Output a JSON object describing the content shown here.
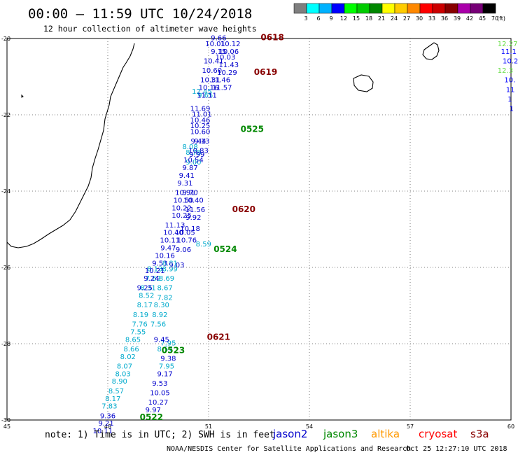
{
  "header": {
    "title": "00:00 – 11:59 UTC 10/24/2018",
    "subtitle": "12 hour collection of altimeter wave heights"
  },
  "legend": {
    "unit": "(ft)",
    "labels": [
      "3",
      "6",
      "9",
      "12",
      "15",
      "18",
      "21",
      "24",
      "27",
      "30",
      "33",
      "36",
      "39",
      "42",
      "45",
      "70"
    ],
    "colors": [
      "#7f7f7f",
      "#00ffff",
      "#00b2ff",
      "#0000ff",
      "#00ff00",
      "#00cc00",
      "#008800",
      "#ffff00",
      "#ffcc00",
      "#ff8800",
      "#ff0000",
      "#cc0000",
      "#880000",
      "#aa00aa",
      "#770077",
      "#000000"
    ]
  },
  "map": {
    "lon_min": 45,
    "lon_max": 60,
    "lat_min": -30,
    "lat_max": -20,
    "x_ticks": [
      "45",
      "48",
      "51",
      "54",
      "57",
      "60"
    ],
    "y_ticks": [
      "-20",
      "-22",
      "-24",
      "-26",
      "-28",
      "-30"
    ]
  },
  "colors": {
    "j2": "#0000cc",
    "j2b": "#0000ff",
    "j3": "#008800",
    "al": "#ff9900",
    "s3": "#880000",
    "lt": "#00aacc",
    "gr": "#66dd44"
  },
  "tracks": [
    {
      "c": "lt",
      "pts": [
        [
          49.85,
          -25.95,
          "8.81"
        ],
        [
          49.4,
          -26.1,
          "8.13"
        ],
        [
          49.85,
          -26.1,
          "8.99"
        ],
        [
          49.35,
          -26.35,
          "7.62"
        ],
        [
          49.75,
          -26.35,
          "8.69"
        ],
        [
          49.2,
          -26.6,
          "8.31"
        ],
        [
          49.7,
          -26.6,
          "8.67"
        ],
        [
          49.15,
          -26.8,
          "8.52"
        ],
        [
          49.7,
          -26.85,
          "7.82"
        ],
        [
          49.1,
          -27.05,
          "8.17"
        ],
        [
          49.6,
          -27.05,
          "8.30"
        ],
        [
          48.98,
          -27.3,
          "8.19"
        ],
        [
          49.55,
          -27.3,
          "8.92"
        ],
        [
          48.95,
          -27.55,
          "7.76"
        ],
        [
          49.5,
          -27.55,
          "7.56"
        ],
        [
          48.9,
          -27.75,
          "7.55"
        ],
        [
          48.75,
          -27.95,
          "8.65"
        ],
        [
          48.7,
          -28.2,
          "8.66"
        ],
        [
          48.6,
          -28.4,
          "8.02"
        ],
        [
          48.5,
          -28.65,
          "8.07"
        ],
        [
          48.45,
          -28.85,
          "8.03"
        ],
        [
          48.35,
          -29.05,
          "8.90"
        ],
        [
          48.25,
          -29.3,
          "8.57"
        ],
        [
          48.15,
          -29.5,
          "8.17"
        ],
        [
          48.05,
          -29.7,
          "7.83"
        ],
        [
          50.85,
          -25.45,
          "8.59"
        ],
        [
          50.45,
          -22.9,
          "8.08"
        ],
        [
          50.55,
          -23.05,
          "8.78"
        ],
        [
          50.55,
          -23.3,
          "9.00"
        ],
        [
          50.8,
          -21.45,
          "12.45"
        ],
        [
          50.9,
          -21.55,
          "9.65"
        ],
        [
          49.7,
          -28.2,
          "8.57"
        ],
        [
          49.75,
          -28.65,
          "7.95"
        ],
        [
          49.8,
          -28.05,
          "7.95"
        ]
      ]
    },
    {
      "c": "j2",
      "pts": [
        [
          51.3,
          -20.05,
          "9.66"
        ],
        [
          51.2,
          -20.2,
          "10.01"
        ],
        [
          51.65,
          -20.2,
          "10.12"
        ],
        [
          51.3,
          -20.4,
          "9.15"
        ],
        [
          51.6,
          -20.4,
          "10.06"
        ],
        [
          51.5,
          -20.55,
          "10.03"
        ],
        [
          51.15,
          -20.65,
          "10.41"
        ],
        [
          51.6,
          -20.75,
          "11.43"
        ],
        [
          51.1,
          -20.9,
          "10.60"
        ],
        [
          51.55,
          -20.95,
          "10.29"
        ],
        [
          51.05,
          -21.15,
          "10.31"
        ],
        [
          51.35,
          -21.15,
          "11.46"
        ],
        [
          51.0,
          -21.35,
          "10.16"
        ],
        [
          51.4,
          -21.35,
          "11.57"
        ],
        [
          50.95,
          -21.55,
          "11.11"
        ],
        [
          50.75,
          -21.9,
          "11.69"
        ],
        [
          50.8,
          -22.05,
          "11.01"
        ],
        [
          50.75,
          -22.2,
          "10.46"
        ],
        [
          50.75,
          -22.35,
          "10.25"
        ],
        [
          50.75,
          -22.5,
          "10.60"
        ],
        [
          50.7,
          -22.75,
          "9.44"
        ],
        [
          50.8,
          -22.75,
          "9.13"
        ],
        [
          50.7,
          -23.0,
          "10.83"
        ],
        [
          50.65,
          -23.1,
          "9.99"
        ],
        [
          50.55,
          -23.25,
          "10.54"
        ],
        [
          50.45,
          -23.45,
          "9.87"
        ],
        [
          50.35,
          -23.65,
          "9.41"
        ],
        [
          50.3,
          -23.85,
          "9.31"
        ],
        [
          50.3,
          -24.1,
          "10.91"
        ],
        [
          50.45,
          -24.1,
          "9.70"
        ],
        [
          50.25,
          -24.3,
          "10.50"
        ],
        [
          50.55,
          -24.3,
          "10.40"
        ],
        [
          50.2,
          -24.5,
          "10.22"
        ],
        [
          50.6,
          -24.55,
          "11.56"
        ],
        [
          50.2,
          -24.7,
          "10.25"
        ],
        [
          50.55,
          -24.75,
          "9.92"
        ],
        [
          50.0,
          -24.95,
          "11.13"
        ],
        [
          50.45,
          -25.05,
          "10.18"
        ],
        [
          49.95,
          -25.15,
          "10.40"
        ],
        [
          50.3,
          -25.15,
          "10.05"
        ],
        [
          49.85,
          -25.35,
          "10.11"
        ],
        [
          50.35,
          -25.35,
          "10.76"
        ],
        [
          49.8,
          -25.55,
          "9.47"
        ],
        [
          50.25,
          -25.6,
          "9.06"
        ],
        [
          49.7,
          -25.75,
          "10.16"
        ],
        [
          49.55,
          -25.95,
          "9.53"
        ],
        [
          50.05,
          -26.0,
          "9.03"
        ],
        [
          49.4,
          -26.15,
          "10.21"
        ],
        [
          49.3,
          -26.35,
          "9.24"
        ],
        [
          49.1,
          -26.6,
          "9.25"
        ],
        [
          49.6,
          -27.95,
          "9.45"
        ],
        [
          49.8,
          -28.45,
          "9.38"
        ],
        [
          49.7,
          -28.85,
          "9.17"
        ],
        [
          49.55,
          -29.1,
          "9.53"
        ],
        [
          49.55,
          -29.35,
          "10.05"
        ],
        [
          49.5,
          -29.6,
          "10.27"
        ],
        [
          49.35,
          -29.8,
          "9.97"
        ],
        [
          48.0,
          -29.95,
          "9.36"
        ],
        [
          47.95,
          -30.15,
          "9.21"
        ],
        [
          47.85,
          -30.35,
          "10.11"
        ]
      ]
    }
  ],
  "time_labels": [
    {
      "lon": 52.55,
      "lat": -20.05,
      "t": "0618",
      "c": "s3"
    },
    {
      "lon": 52.35,
      "lat": -20.95,
      "t": "0619",
      "c": "s3"
    },
    {
      "lon": 51.95,
      "lat": -22.45,
      "t": "0525",
      "c": "j3"
    },
    {
      "lon": 51.7,
      "lat": -24.55,
      "t": "0620",
      "c": "s3"
    },
    {
      "lon": 51.15,
      "lat": -25.6,
      "t": "0524",
      "c": "j3"
    },
    {
      "lon": 50.95,
      "lat": -27.9,
      "t": "0621",
      "c": "s3"
    },
    {
      "lon": 49.6,
      "lat": -28.25,
      "t": "0523",
      "c": "j3"
    },
    {
      "lon": 48.95,
      "lat": -30.0,
      "t": "0522",
      "c": "j3"
    }
  ],
  "edge_labels": [
    {
      "lon": 59.6,
      "lat": -20.2,
      "t": "12.27",
      "c": "gr"
    },
    {
      "lon": 59.7,
      "lat": -20.4,
      "t": "11.1",
      "c": "j2b"
    },
    {
      "lon": 59.75,
      "lat": -20.65,
      "t": "10.2",
      "c": "j2b"
    },
    {
      "lon": 59.6,
      "lat": -20.9,
      "t": "12.3",
      "c": "gr"
    },
    {
      "lon": 59.8,
      "lat": -21.15,
      "t": "10.",
      "c": "j2b"
    },
    {
      "lon": 59.85,
      "lat": -21.4,
      "t": "11",
      "c": "j2b"
    },
    {
      "lon": 59.9,
      "lat": -21.65,
      "t": "1",
      "c": "j2b"
    },
    {
      "lon": 59.95,
      "lat": -21.9,
      "t": "1",
      "c": "j2b"
    }
  ],
  "footer": {
    "note": "note: 1) Time is in UTC; 2) SWH is in feet",
    "sats": [
      {
        "name": "jason2",
        "color": "#0000cc"
      },
      {
        "name": "jason3",
        "color": "#008800"
      },
      {
        "name": "altika",
        "color": "#ff9900"
      },
      {
        "name": "cryosat",
        "color": "#ff0000"
      },
      {
        "name": "s3a",
        "color": "#880000"
      }
    ],
    "credit": "NOAA/NESDIS Center for Satellite Applications and Research",
    "timestamp": "Oct 25 12:27:10 UTC 2018"
  }
}
